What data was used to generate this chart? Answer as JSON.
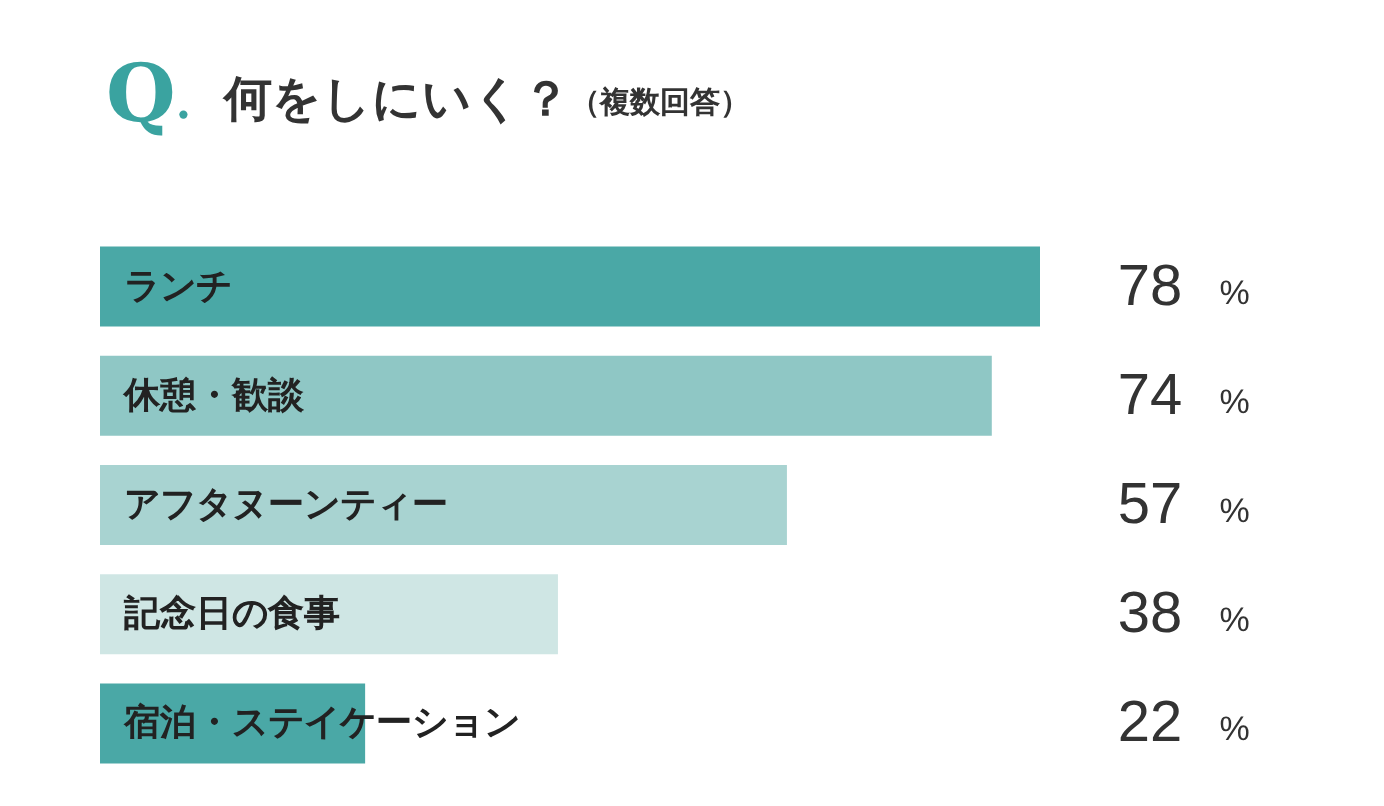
{
  "chart_data": {
    "type": "bar",
    "orientation": "horizontal",
    "title": "Q. 何をしにいく？",
    "subtitle": "（複数回答）",
    "categories": [
      "ランチ",
      "休憩・歓談",
      "アフタヌーンティー",
      "記念日の食事",
      "宿泊・ステイケーション"
    ],
    "values": [
      78,
      74,
      57,
      38,
      22
    ],
    "colors": [
      "#4aa8a6",
      "#8fc7c5",
      "#a8d3d1",
      "#cfe6e4",
      "#4aa8a6"
    ],
    "value_labels": [
      "78 %",
      "74 %",
      "57 %",
      "38 %",
      "22 %"
    ]
  }
}
